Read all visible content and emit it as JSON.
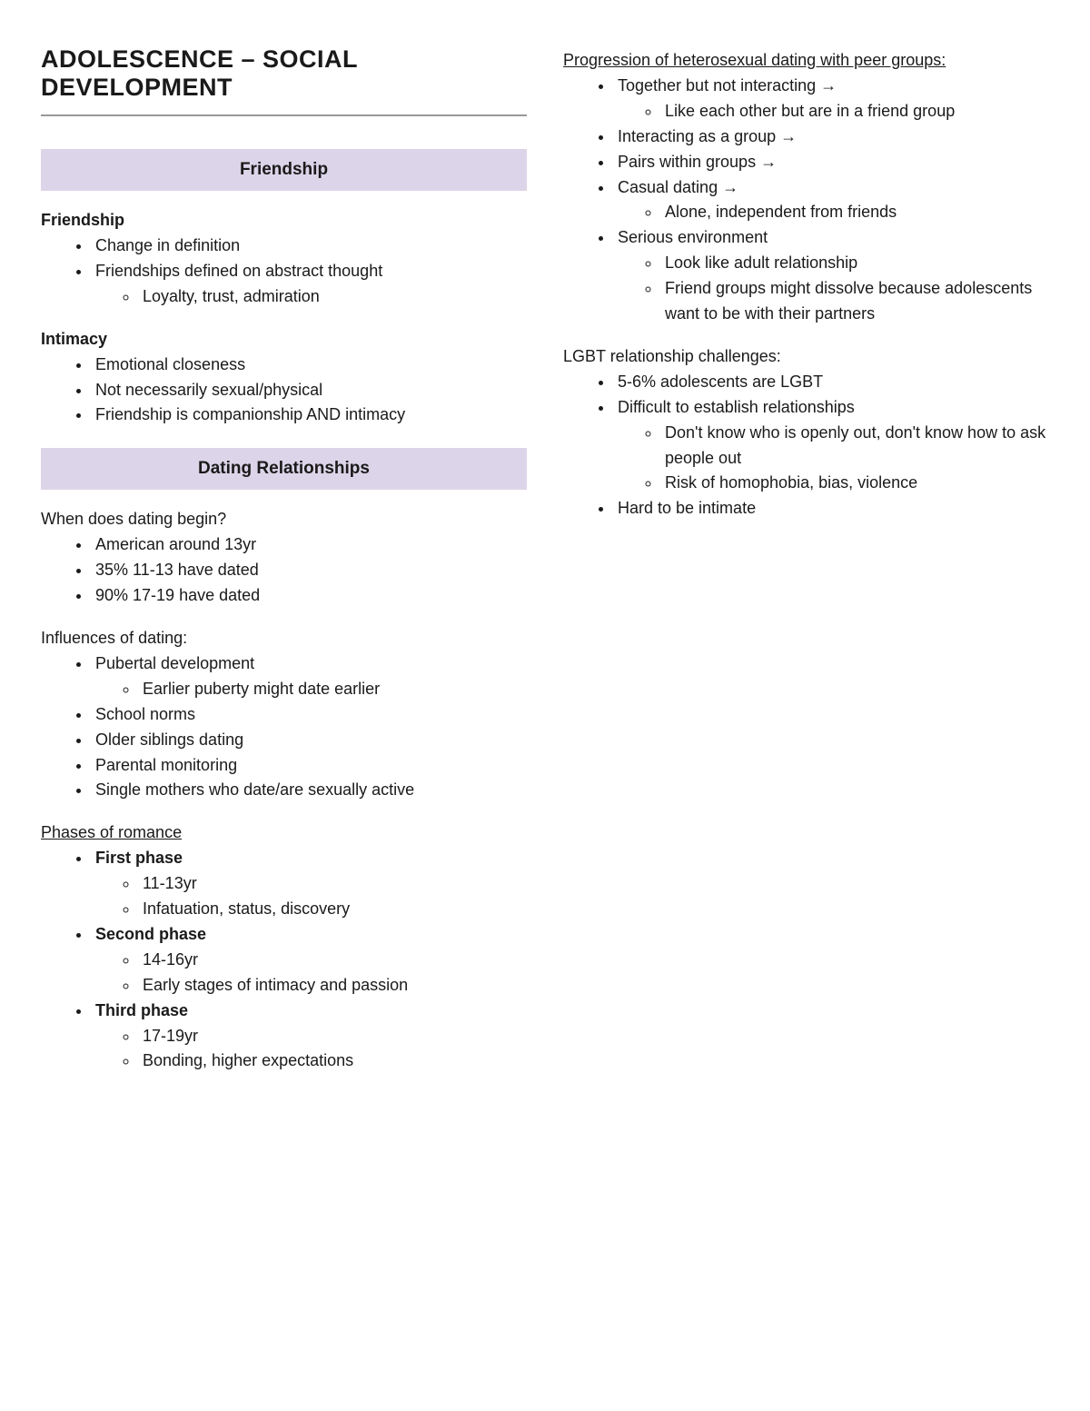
{
  "title": "ADOLESCENCE – SOCIAL DEVELOPMENT",
  "colors": {
    "section_header_bg": "#dcd4e8",
    "rule_color": "#999999",
    "text_color": "#1a1a1a",
    "background": "#ffffff"
  },
  "left": {
    "sections": {
      "friendship_header": "Friendship",
      "dating_header": "Dating Relationships"
    },
    "friendship": {
      "heading": "Friendship",
      "items": {
        "i1": "Change in definition",
        "i2": "Friendships defined on abstract thought",
        "i2sub1": "Loyalty, trust, admiration"
      }
    },
    "intimacy": {
      "heading": "Intimacy",
      "items": {
        "i1": "Emotional closeness",
        "i2": "Not necessarily sexual/physical",
        "i3": "Friendship is companionship AND intimacy"
      }
    },
    "dating_begin": {
      "heading": "When does dating begin?",
      "items": {
        "i1": "American around 13yr",
        "i2": "35% 11-13 have dated",
        "i3": "90% 17-19 have dated"
      }
    },
    "influences": {
      "heading": "Influences of dating:",
      "items": {
        "i1": "Pubertal development",
        "i1sub1": "Earlier puberty might date earlier",
        "i2": "School norms",
        "i3": "Older siblings dating",
        "i4": "Parental monitoring",
        "i5": "Single mothers who date/are sexually active"
      }
    },
    "phases": {
      "heading": "Phases of romance",
      "p1": "First phase",
      "p1s1": "11-13yr",
      "p1s2": "Infatuation, status, discovery",
      "p2": "Second phase",
      "p2s1": "14-16yr",
      "p2s2": "Early stages of intimacy and passion",
      "p3": "Third phase",
      "p3s1": "17-19yr",
      "p3s2": "Bonding, higher expectations"
    }
  },
  "right": {
    "progression": {
      "heading": "Progression of heterosexual dating with peer groups:",
      "i1": "Together but not interacting →",
      "i1s1": "Like each other but are in a friend group",
      "i2": "Interacting as a group →",
      "i3": "Pairs within groups →",
      "i4": "Casual dating →",
      "i4s1": "Alone, independent from friends",
      "i5": "Serious environment",
      "i5s1": "Look like adult relationship",
      "i5s2": "Friend groups might dissolve because adolescents want to be with their partners"
    },
    "lgbt": {
      "heading": "LGBT relationship challenges:",
      "i1": "5-6% adolescents are LGBT",
      "i2": "Difficult to establish relationships",
      "i2s1": "Don't know who is openly out, don't know how to ask people out",
      "i2s2": "Risk of homophobia, bias, violence",
      "i3": "Hard to be intimate"
    }
  }
}
